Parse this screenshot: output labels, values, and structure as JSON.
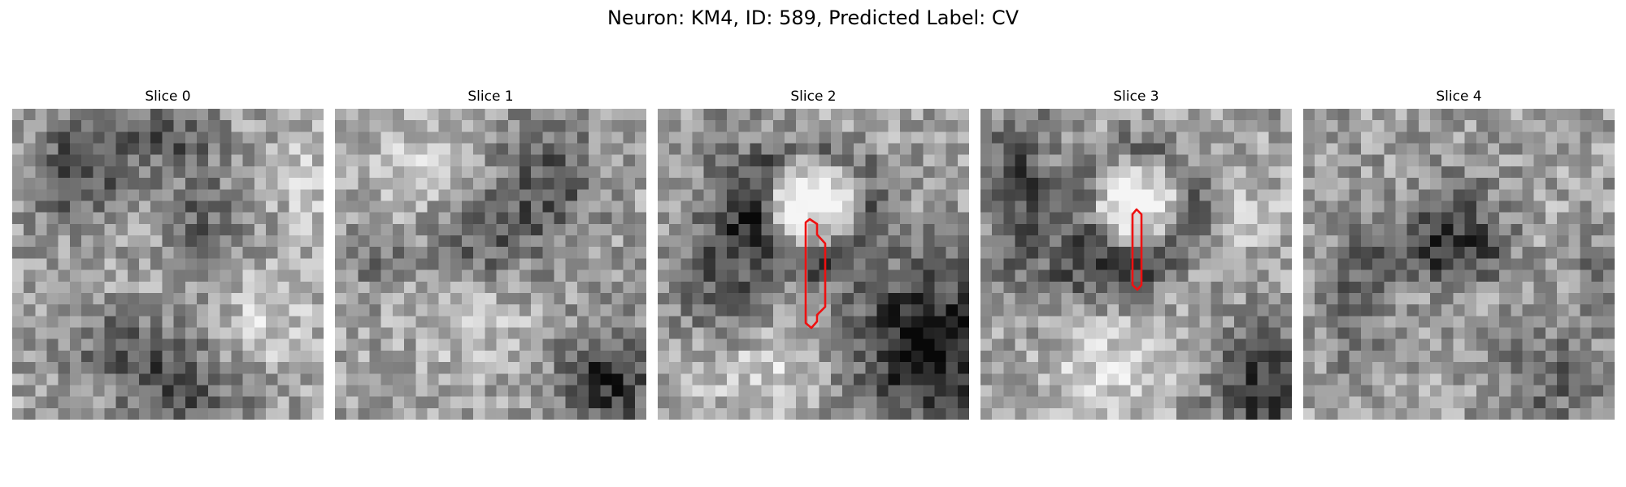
{
  "figure": {
    "title": "Neuron: KM4, ID: 589, Predicted Label: CV"
  },
  "panels": [
    {
      "title": "Slice 0",
      "has_contour": false
    },
    {
      "title": "Slice 1",
      "has_contour": false
    },
    {
      "title": "Slice 2",
      "has_contour": true
    },
    {
      "title": "Slice 3",
      "has_contour": true
    },
    {
      "title": "Slice 4",
      "has_contour": false
    }
  ],
  "image": {
    "colormap": "grayscale",
    "grid_size": 27
  },
  "contour": {
    "color": "#ee1111"
  }
}
